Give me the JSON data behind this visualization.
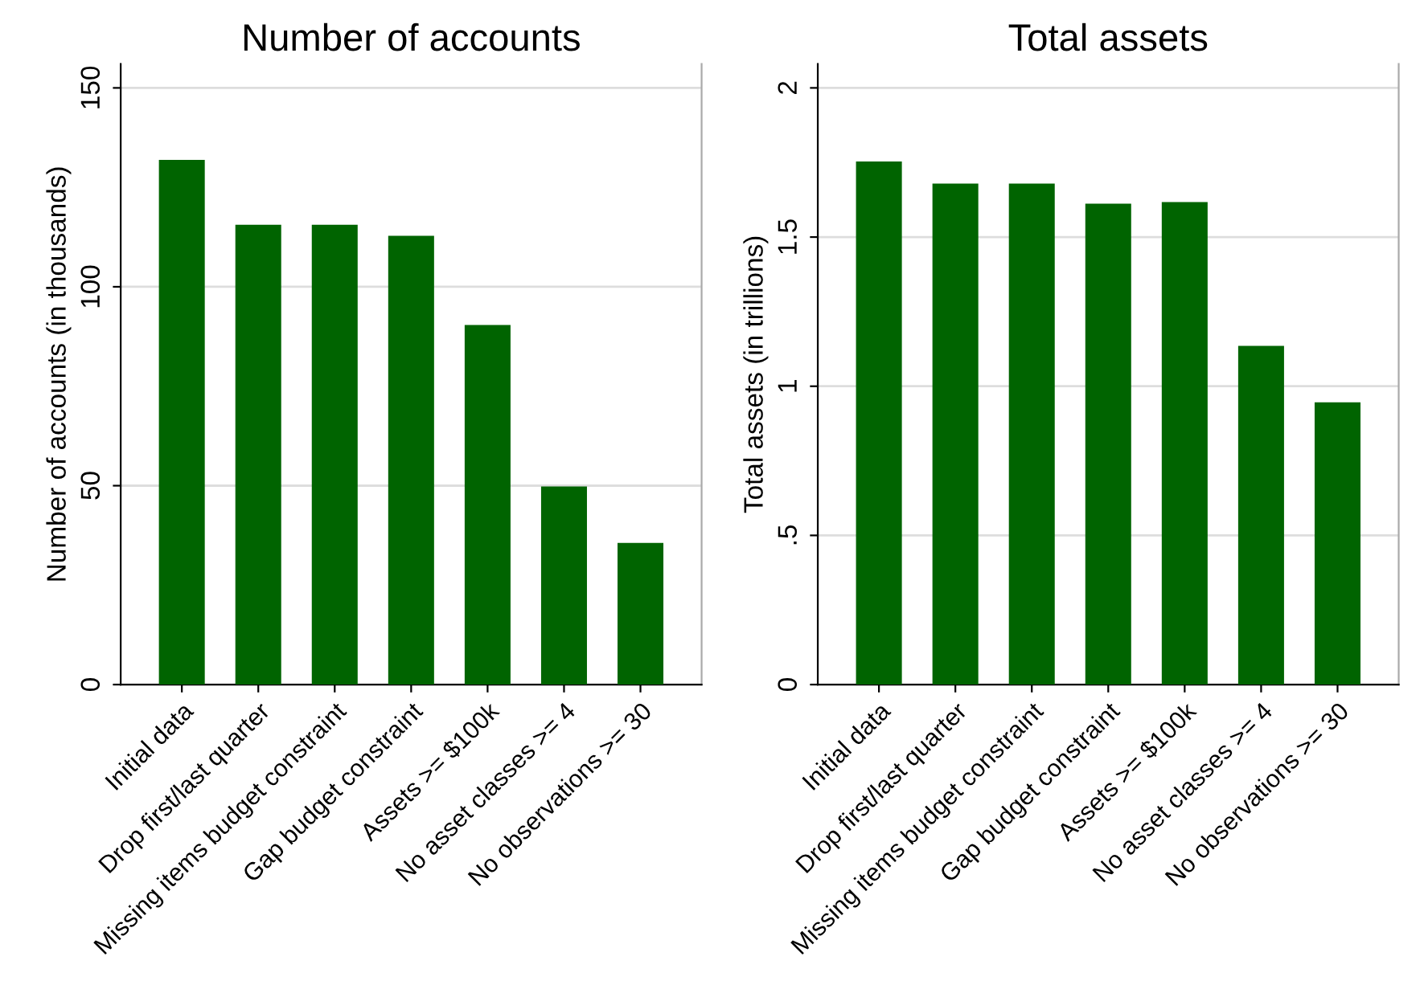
{
  "chart_data": [
    {
      "type": "bar",
      "title": "Number of accounts",
      "ylabel": "Number of accounts (in thousands)",
      "categories": [
        "Initial data",
        "Drop first/last quarter",
        "Missing items budget constraint",
        "Gap budget constraint",
        "Assets >= $100k",
        "No asset classes >= 4",
        "No observations >= 30"
      ],
      "values": [
        131.9,
        115.6,
        115.6,
        112.8,
        90.4,
        49.8,
        35.6
      ],
      "color": "#006400",
      "ylim": [
        0,
        156
      ],
      "yticks": [
        0,
        50,
        100,
        150
      ],
      "grid": "y"
    },
    {
      "type": "bar",
      "title": "Total assets",
      "ylabel": "Total assets (in trillions)",
      "categories": [
        "Initial data",
        "Drop first/last quarter",
        "Missing items budget constraint",
        "Gap budget constraint",
        "Assets >= $100k",
        "No asset classes >= 4",
        "No observations >= 30"
      ],
      "values": [
        1.753,
        1.679,
        1.679,
        1.612,
        1.617,
        1.135,
        0.946
      ],
      "color": "#006400",
      "ylim": [
        0,
        2.08
      ],
      "yticks": [
        0,
        {
          "value": 0.5,
          "label": ".5"
        },
        1,
        1.5,
        2
      ],
      "grid": "y"
    }
  ]
}
